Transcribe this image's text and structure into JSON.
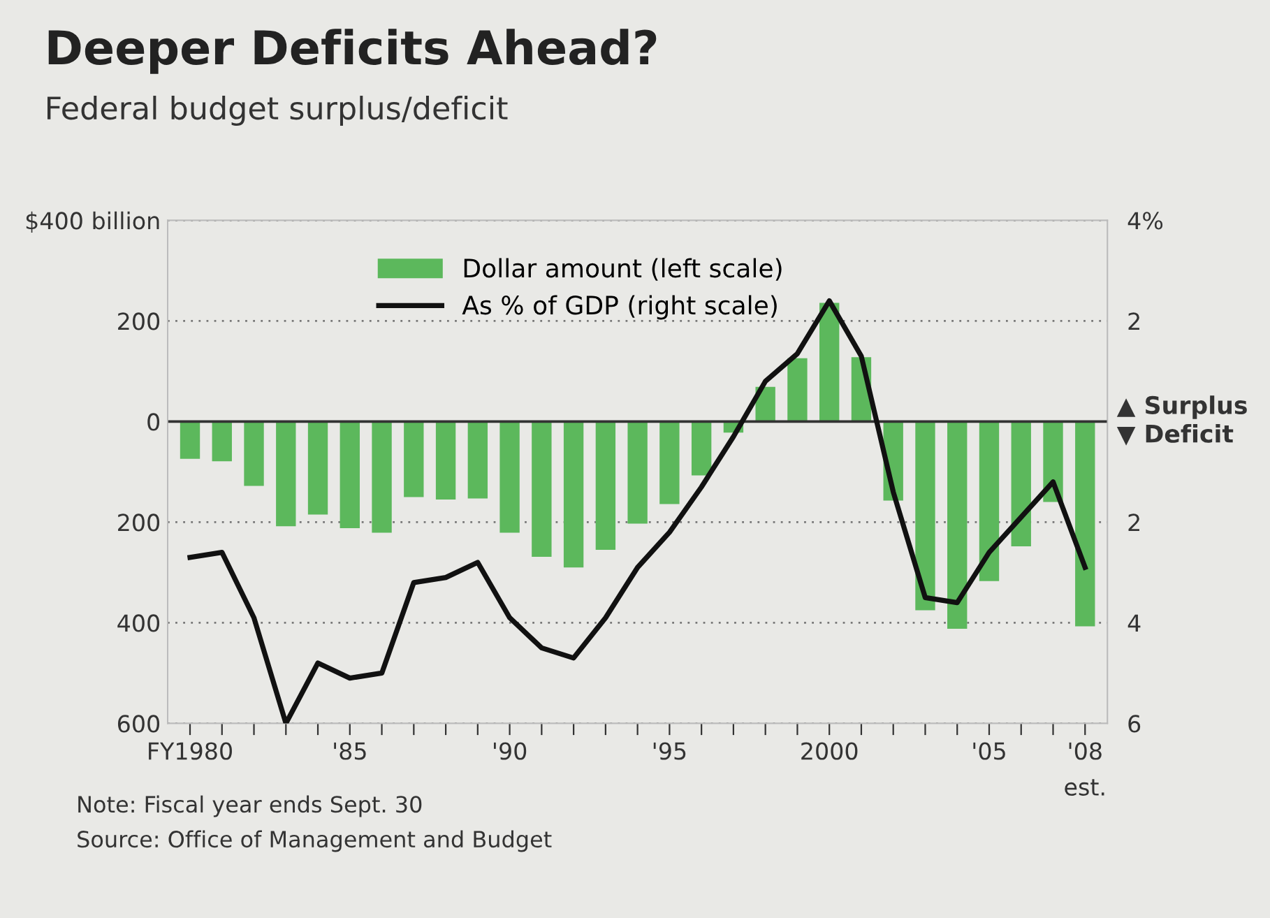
{
  "chart_data": {
    "type": "bar",
    "title": "Deeper Deficits Ahead?",
    "subtitle": "Federal budget surplus/deficit",
    "x": [
      1980,
      1981,
      1982,
      1983,
      1984,
      1985,
      1986,
      1987,
      1988,
      1989,
      1990,
      1991,
      1992,
      1993,
      1994,
      1995,
      1996,
      1997,
      1998,
      1999,
      2000,
      2001,
      2002,
      2003,
      2004,
      2005,
      2006,
      2007,
      2008
    ],
    "series": [
      {
        "name": "Dollar amount (left scale)",
        "color": "#5cb85c",
        "values": [
          -74,
          -79,
          -128,
          -208,
          -185,
          -212,
          -221,
          -150,
          -155,
          -153,
          -221,
          -269,
          -290,
          -255,
          -203,
          -164,
          -107,
          -22,
          69,
          126,
          236,
          128,
          -157,
          -375,
          -412,
          -317,
          -248,
          -160,
          -407
        ]
      },
      {
        "name": "As % of GDP (right scale)",
        "type": "line",
        "axis": "y2",
        "color": "#111111",
        "values": [
          -2.7,
          -2.6,
          -3.9,
          -6.0,
          -4.8,
          -5.1,
          -5.0,
          -3.2,
          -3.1,
          -2.8,
          -3.9,
          -4.5,
          -4.7,
          -3.9,
          -2.9,
          -2.2,
          -1.3,
          -0.3,
          0.8,
          1.35,
          2.4,
          1.3,
          -1.4,
          -3.5,
          -3.6,
          -2.6,
          -1.9,
          -1.2,
          -2.9
        ]
      }
    ],
    "xlim": [
      1979.3,
      2008.7
    ],
    "xticks": [
      {
        "value": 1980,
        "label": "FY1980"
      },
      {
        "value": 1981,
        "label": null
      },
      {
        "value": 1982,
        "label": null
      },
      {
        "value": 1983,
        "label": null
      },
      {
        "value": 1984,
        "label": null
      },
      {
        "value": 1985,
        "label": "'85"
      },
      {
        "value": 1986,
        "label": null
      },
      {
        "value": 1987,
        "label": null
      },
      {
        "value": 1988,
        "label": null
      },
      {
        "value": 1989,
        "label": null
      },
      {
        "value": 1990,
        "label": "'90"
      },
      {
        "value": 1991,
        "label": null
      },
      {
        "value": 1992,
        "label": null
      },
      {
        "value": 1993,
        "label": null
      },
      {
        "value": 1994,
        "label": null
      },
      {
        "value": 1995,
        "label": "'95"
      },
      {
        "value": 1996,
        "label": null
      },
      {
        "value": 1997,
        "label": null
      },
      {
        "value": 1998,
        "label": null
      },
      {
        "value": 1999,
        "label": null
      },
      {
        "value": 2000,
        "label": "2000"
      },
      {
        "value": 2001,
        "label": null
      },
      {
        "value": 2002,
        "label": null
      },
      {
        "value": 2003,
        "label": null
      },
      {
        "value": 2004,
        "label": null
      },
      {
        "value": 2005,
        "label": "'05"
      },
      {
        "value": 2006,
        "label": null
      },
      {
        "value": 2007,
        "label": null
      },
      {
        "value": 2008,
        "label": "'08"
      }
    ],
    "ylim": [
      -600,
      400
    ],
    "yticks": [
      {
        "value": 400,
        "label": "$400 billion"
      },
      200,
      0,
      {
        "value": -200,
        "label": "200"
      },
      {
        "value": -400,
        "label": "400"
      },
      {
        "value": -600,
        "label": "600"
      }
    ],
    "y2lim": [
      -6,
      4
    ],
    "y2ticks": [
      {
        "value": 4,
        "label": "4%"
      },
      2,
      {
        "value": -2,
        "label": "2"
      },
      {
        "value": -4,
        "label": "4"
      },
      {
        "value": -6,
        "label": "6"
      }
    ],
    "ref_lines": [
      {
        "axis": "y",
        "value": 0,
        "color": "#333333",
        "line_style": "solid"
      }
    ],
    "grid": "y",
    "legend": "top",
    "annotations": [
      "▲ Surplus",
      "▼ Deficit",
      "est.",
      "Note: Fiscal year ends Sept. 30",
      "Source: Office of Management and Budget"
    ]
  }
}
